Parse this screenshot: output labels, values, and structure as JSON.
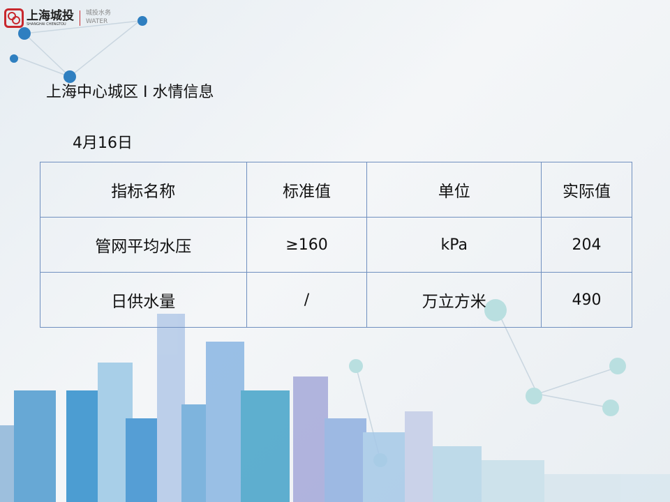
{
  "logo": {
    "name_cn": "上海城投",
    "name_en": "SHANGHAI CHENGTOU",
    "division_cn": "城投水务",
    "division_en": "WATER"
  },
  "header": {
    "title": "上海中心城区 I 水情信息",
    "date": "4月16日"
  },
  "table": {
    "headers": [
      "指标名称",
      "标准值",
      "单位",
      "实际值"
    ],
    "rows": [
      [
        "管网平均水压",
        "≥160",
        "kPa",
        "204"
      ],
      [
        "日供水量",
        "/",
        "万立方米",
        "490"
      ]
    ]
  },
  "colors": {
    "brand_red": "#c8282e",
    "border": "#6f8fbf"
  }
}
